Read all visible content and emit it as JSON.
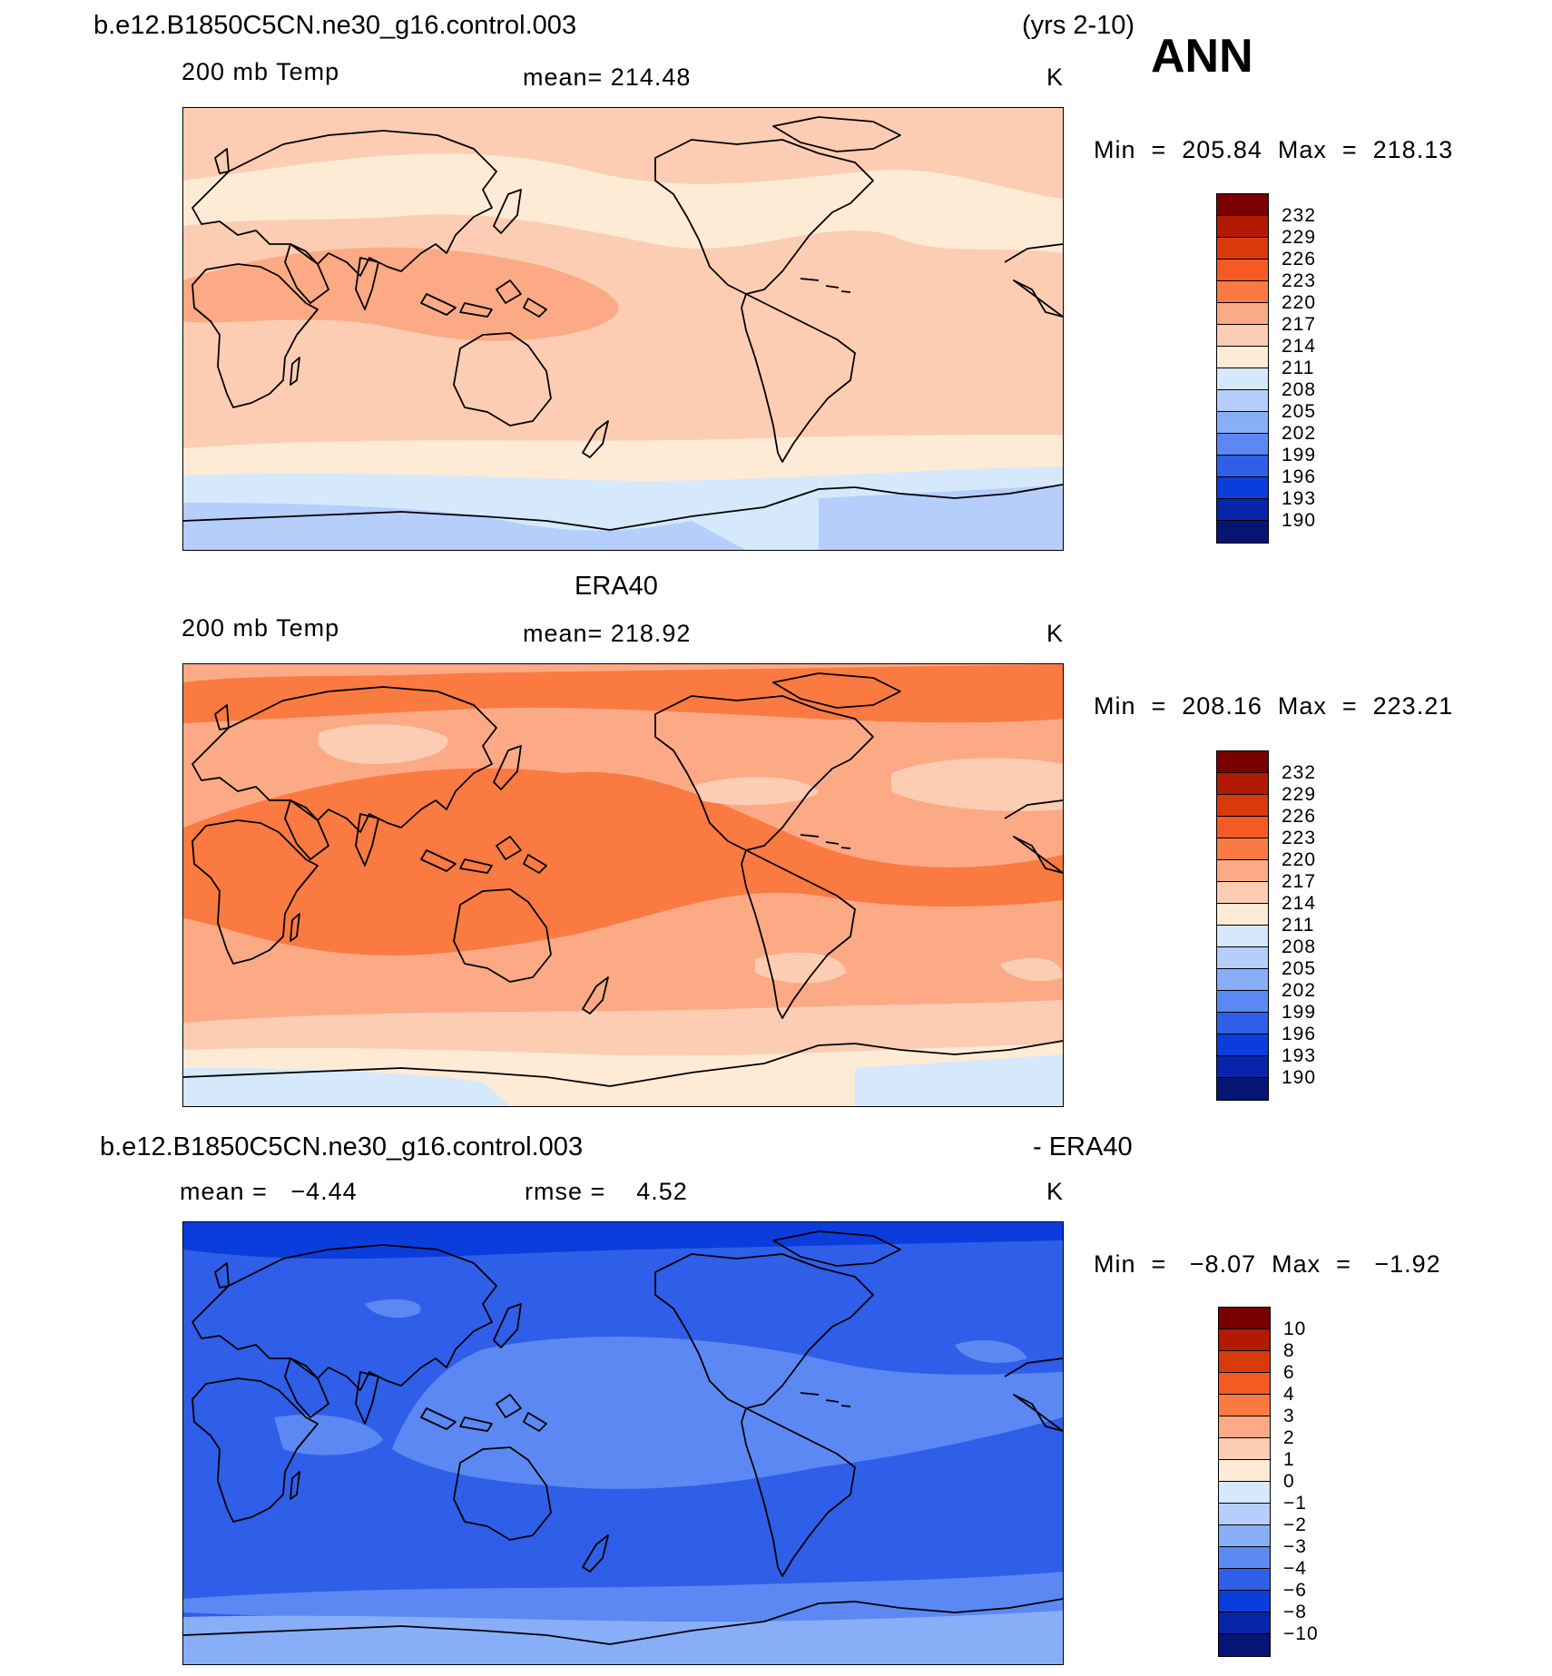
{
  "header": {
    "case_name": "b.e12.B1850C5CN.ne30_g16.control.003",
    "years": "(yrs 2-10)",
    "season": "ANN"
  },
  "colors": {
    "c232": "#7a0000",
    "c229": "#b31a04",
    "c226": "#d93a0c",
    "c223": "#f45a22",
    "c220": "#fa7a42",
    "c217": "#fbaa85",
    "c214": "#fccdb3",
    "c211": "#fdebd6",
    "c208": "#d6e8fc",
    "c205": "#b5cefb",
    "c202": "#89aef8",
    "c199": "#5b88f2",
    "c196": "#2f5ee8",
    "c193": "#0b3ddc",
    "c190": "#0824a8",
    "c187": "#061473",
    "coast": "#000000"
  },
  "panels": [
    {
      "title_left": "",
      "title_right": "",
      "field_label": "200 mb Temp",
      "stat_label": "mean= 214.48",
      "stat2_label": "",
      "units": "K",
      "min_max": "Min  =  205.84  Max  =  218.13",
      "colorbar_labels": [
        "232",
        "229",
        "226",
        "223",
        "220",
        "217",
        "214",
        "211",
        "208",
        "205",
        "202",
        "199",
        "196",
        "193",
        "190"
      ],
      "colorbar_fills": [
        "#7a0000",
        "#b31a04",
        "#d93a0c",
        "#f45a22",
        "#fa7a42",
        "#fbaa85",
        "#fccdb3",
        "#fdebd6",
        "#d6e8fc",
        "#b5cefb",
        "#89aef8",
        "#5b88f2",
        "#2f5ee8",
        "#0b3ddc",
        "#0824a8",
        "#061473"
      ],
      "map_base": "#fccdb3"
    },
    {
      "title_left": "ERA40",
      "title_right": "",
      "field_label": "200 mb Temp",
      "stat_label": "mean= 218.92",
      "stat2_label": "",
      "units": "K",
      "min_max": "Min  =  208.16  Max  =  223.21",
      "colorbar_labels": [
        "232",
        "229",
        "226",
        "223",
        "220",
        "217",
        "214",
        "211",
        "208",
        "205",
        "202",
        "199",
        "196",
        "193",
        "190"
      ],
      "colorbar_fills": [
        "#7a0000",
        "#b31a04",
        "#d93a0c",
        "#f45a22",
        "#fa7a42",
        "#fbaa85",
        "#fccdb3",
        "#fdebd6",
        "#d6e8fc",
        "#b5cefb",
        "#89aef8",
        "#5b88f2",
        "#2f5ee8",
        "#0b3ddc",
        "#0824a8",
        "#061473"
      ],
      "map_base": "#fbaa85"
    },
    {
      "title_left": "b.e12.B1850C5CN.ne30_g16.control.003",
      "title_right": "- ERA40",
      "field_label": "",
      "stat_label": "mean =   −4.44",
      "stat2_label": "rmse =    4.52",
      "units": "K",
      "min_max": "Min  =   −8.07  Max  =   −1.92",
      "colorbar_labels": [
        "10",
        "8",
        "6",
        "4",
        "3",
        "2",
        "1",
        "0",
        "−1",
        "−2",
        "−3",
        "−4",
        "−6",
        "−8",
        "−10"
      ],
      "colorbar_fills": [
        "#7a0000",
        "#b31a04",
        "#d93a0c",
        "#f45a22",
        "#fa7a42",
        "#fbaa85",
        "#fccdb3",
        "#fdebd6",
        "#d6e8fc",
        "#b5cefb",
        "#89aef8",
        "#5b88f2",
        "#2f5ee8",
        "#0b3ddc",
        "#0824a8",
        "#061473"
      ],
      "map_base": "#2f5ee8"
    }
  ]
}
